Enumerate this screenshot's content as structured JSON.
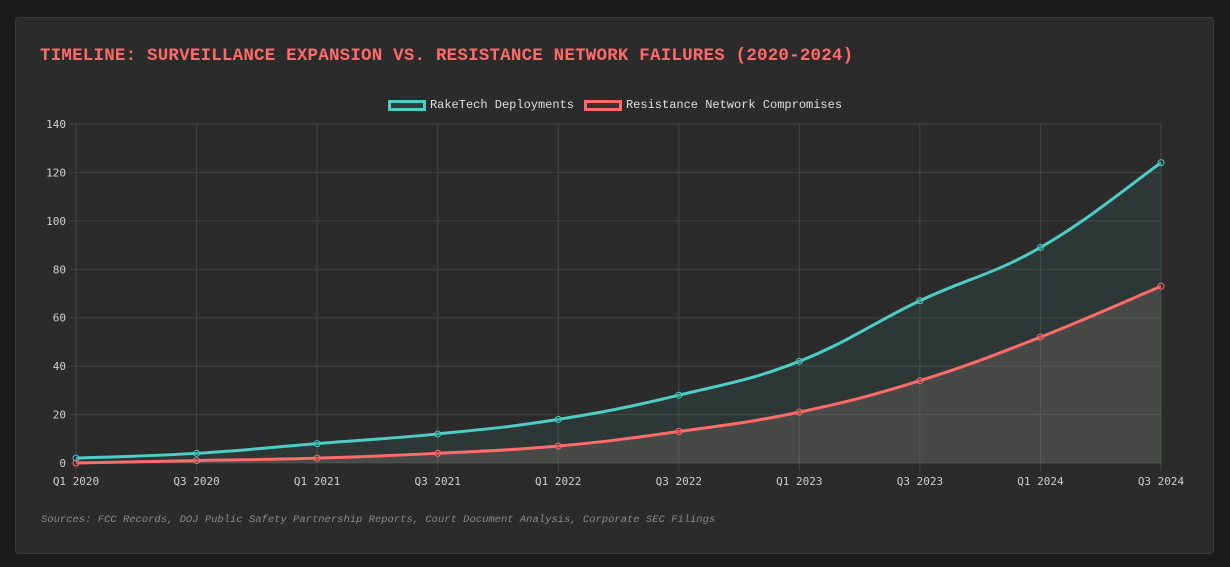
{
  "title": "TIMELINE: SURVEILLANCE EXPANSION VS. RESISTANCE NETWORK FAILURES (2020-2024)",
  "legend": [
    {
      "label": "RakeTech Deployments",
      "color": "#4ecdc4"
    },
    {
      "label": "Resistance Network Compromises",
      "color": "#ff6b6b"
    }
  ],
  "sources": "Sources: FCC Records, DOJ Public Safety Partnership Reports, Court Document Analysis, Corporate SEC Filings",
  "chart_data": {
    "type": "line",
    "title": "TIMELINE: SURVEILLANCE EXPANSION VS. RESISTANCE NETWORK FAILURES (2020-2024)",
    "categories": [
      "Q1 2020",
      "Q3 2020",
      "Q1 2021",
      "Q3 2021",
      "Q1 2022",
      "Q3 2022",
      "Q1 2023",
      "Q3 2023",
      "Q1 2024",
      "Q3 2024"
    ],
    "series": [
      {
        "name": "RakeTech Deployments",
        "color": "#4ecdc4",
        "fill": true,
        "values": [
          2,
          4,
          8,
          12,
          18,
          28,
          42,
          67,
          89,
          124
        ]
      },
      {
        "name": "Resistance Network Compromises",
        "color": "#ff6b6b",
        "fill": true,
        "values": [
          0,
          1,
          2,
          4,
          7,
          13,
          21,
          34,
          52,
          73
        ]
      }
    ],
    "xlabel": "",
    "ylabel": "",
    "ylim": [
      0,
      140
    ],
    "yticks": [
      0,
      20,
      40,
      60,
      80,
      100,
      120,
      140
    ],
    "grid": true,
    "legend_position": "top"
  }
}
